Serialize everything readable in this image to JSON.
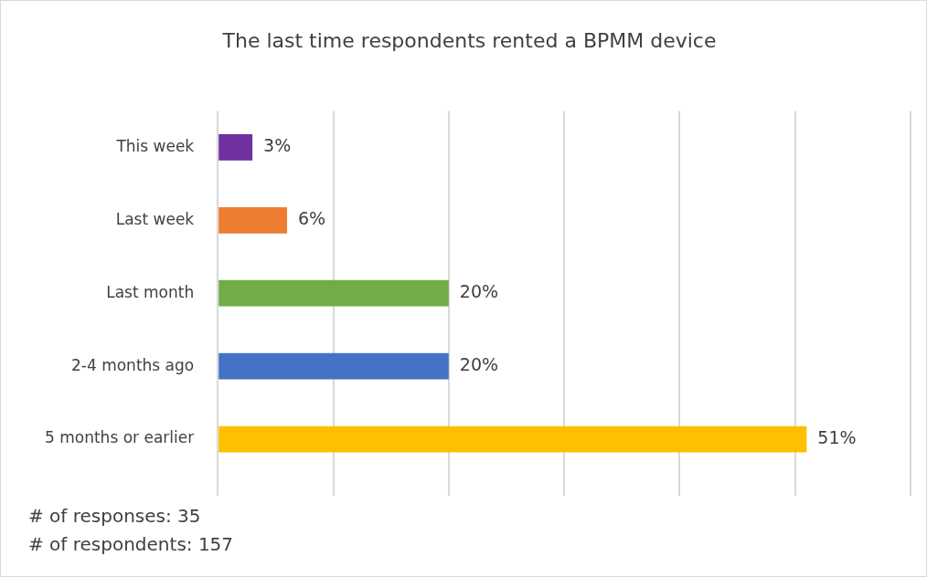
{
  "chart_data": {
    "type": "bar",
    "orientation": "horizontal",
    "title": "The last time respondents rented a BPMM device",
    "categories": [
      "This week",
      "Last week",
      "Last month",
      "2-4 months ago",
      "5 months or earlier"
    ],
    "values": [
      3,
      6,
      20,
      20,
      51
    ],
    "colors": [
      "#7030a0",
      "#ed7d31",
      "#70ad47",
      "#4472c4",
      "#ffc000"
    ],
    "value_labels": [
      "3%",
      "6%",
      "20%",
      "20%",
      "51%"
    ],
    "xlim": [
      0,
      60
    ],
    "xticks": [
      {
        "value": 0,
        "label": null
      },
      {
        "value": 10,
        "label": null
      },
      {
        "value": 20,
        "label": null
      },
      {
        "value": 30,
        "label": null
      },
      {
        "value": 40,
        "label": null
      },
      {
        "value": 50,
        "label": null
      },
      {
        "value": 60,
        "label": null
      }
    ],
    "tick_labels": "y",
    "grid": "x",
    "legend": false,
    "annotations": [
      "# of responses: 35",
      "# of respondents: 157"
    ]
  }
}
